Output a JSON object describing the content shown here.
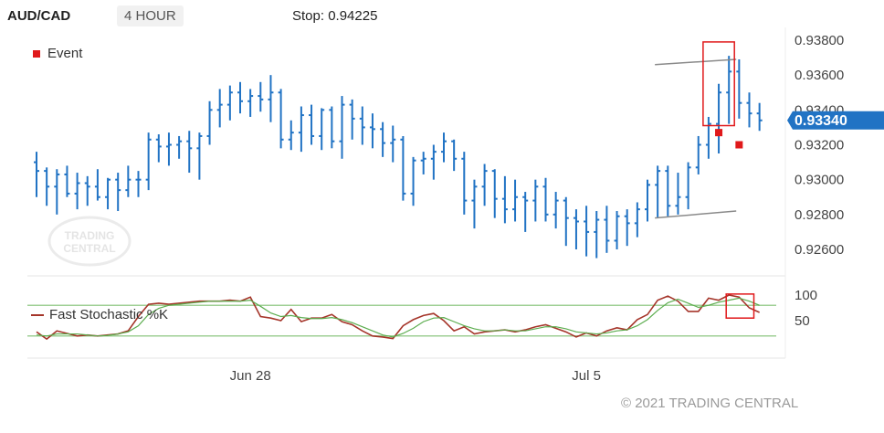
{
  "header": {
    "symbol": "AUD/CAD",
    "timeframe": "4 HOUR",
    "stop": "Stop: 0.94225"
  },
  "legend": {
    "event": "Event",
    "stochastic": "Fast Stochastic %K"
  },
  "watermark": {
    "line1": "TRADING",
    "line2": "CENTRAL"
  },
  "footer": {
    "copyright": "© 2021 TRADING CENTRAL"
  },
  "colors": {
    "bar": "#2173c4",
    "event": "#e0191b",
    "stoch_k": "#a5352a",
    "stoch_d": "#5cad4f",
    "stoch_band": "#9fcf94",
    "price_tag": "#2173c4",
    "trendline": "#8a8a8a",
    "highlight": "#e0191b"
  },
  "chart_data": [
    {
      "type": "ohlc",
      "panel": "price",
      "ylim": [
        0.925,
        0.9392
      ],
      "yticks": [
        "0.92600",
        "0.92800",
        "0.93000",
        "0.93200",
        "0.93400",
        "0.93600",
        "0.93800"
      ],
      "last_price": "0.93340",
      "xticks": [
        {
          "label": "Jun 28",
          "index": 21
        },
        {
          "label": "Jul 5",
          "index": 54
        }
      ],
      "bars": [
        [
          0.931,
          0.9316,
          0.929,
          0.9305
        ],
        [
          0.9305,
          0.9307,
          0.9285,
          0.9296
        ],
        [
          0.9296,
          0.9306,
          0.928,
          0.9303
        ],
        [
          0.9303,
          0.9308,
          0.929,
          0.9292
        ],
        [
          0.9292,
          0.9304,
          0.9283,
          0.9298
        ],
        [
          0.9298,
          0.9302,
          0.9285,
          0.9296
        ],
        [
          0.9296,
          0.9306,
          0.9288,
          0.929
        ],
        [
          0.929,
          0.9301,
          0.9283,
          0.93
        ],
        [
          0.93,
          0.9304,
          0.9282,
          0.9294
        ],
        [
          0.9294,
          0.9308,
          0.929,
          0.93
        ],
        [
          0.93,
          0.9305,
          0.929,
          0.93
        ],
        [
          0.93,
          0.9327,
          0.9294,
          0.9323
        ],
        [
          0.9323,
          0.9326,
          0.931,
          0.9319
        ],
        [
          0.9319,
          0.9327,
          0.9308,
          0.932
        ],
        [
          0.932,
          0.9325,
          0.9312,
          0.9322
        ],
        [
          0.9322,
          0.9328,
          0.9304,
          0.9318
        ],
        [
          0.9318,
          0.9327,
          0.93,
          0.9325
        ],
        [
          0.9325,
          0.9345,
          0.932,
          0.934
        ],
        [
          0.934,
          0.9352,
          0.933,
          0.9343
        ],
        [
          0.9343,
          0.9354,
          0.9334,
          0.935
        ],
        [
          0.935,
          0.9356,
          0.9338,
          0.9345
        ],
        [
          0.9345,
          0.9352,
          0.9336,
          0.9348
        ],
        [
          0.9348,
          0.9356,
          0.9339,
          0.9346
        ],
        [
          0.9346,
          0.936,
          0.9333,
          0.935
        ],
        [
          0.935,
          0.9352,
          0.9318,
          0.9323
        ],
        [
          0.9323,
          0.9334,
          0.9317,
          0.9327
        ],
        [
          0.9327,
          0.9342,
          0.9316,
          0.9337
        ],
        [
          0.9337,
          0.9343,
          0.932,
          0.9325
        ],
        [
          0.9325,
          0.9341,
          0.9317,
          0.934
        ],
        [
          0.934,
          0.9342,
          0.9318,
          0.9322
        ],
        [
          0.9322,
          0.9348,
          0.9312,
          0.9343
        ],
        [
          0.9343,
          0.9346,
          0.9323,
          0.9335
        ],
        [
          0.9335,
          0.9342,
          0.932,
          0.933
        ],
        [
          0.933,
          0.9338,
          0.9318,
          0.9329
        ],
        [
          0.9329,
          0.9333,
          0.9313,
          0.9321
        ],
        [
          0.9321,
          0.9331,
          0.931,
          0.9323
        ],
        [
          0.9323,
          0.9325,
          0.9288,
          0.9292
        ],
        [
          0.9292,
          0.9313,
          0.9285,
          0.9311
        ],
        [
          0.9311,
          0.9316,
          0.9303,
          0.9312
        ],
        [
          0.9312,
          0.932,
          0.93,
          0.9316
        ],
        [
          0.9316,
          0.9327,
          0.931,
          0.9322
        ],
        [
          0.9322,
          0.9323,
          0.9305,
          0.9312
        ],
        [
          0.9312,
          0.9316,
          0.928,
          0.9288
        ],
        [
          0.9288,
          0.93,
          0.9272,
          0.9296
        ],
        [
          0.9296,
          0.9309,
          0.9285,
          0.9305
        ],
        [
          0.9305,
          0.9306,
          0.9278,
          0.9289
        ],
        [
          0.9289,
          0.9302,
          0.9275,
          0.9283
        ],
        [
          0.9283,
          0.93,
          0.9276,
          0.929
        ],
        [
          0.929,
          0.9293,
          0.927,
          0.9288
        ],
        [
          0.9288,
          0.93,
          0.9276,
          0.9296
        ],
        [
          0.9296,
          0.9301,
          0.9276,
          0.928
        ],
        [
          0.928,
          0.9293,
          0.9272,
          0.9288
        ],
        [
          0.9288,
          0.929,
          0.9262,
          0.9278
        ],
        [
          0.9278,
          0.9283,
          0.926,
          0.9276
        ],
        [
          0.9276,
          0.9285,
          0.9256,
          0.927
        ],
        [
          0.927,
          0.9282,
          0.9255,
          0.9277
        ],
        [
          0.9277,
          0.9285,
          0.9258,
          0.9265
        ],
        [
          0.9265,
          0.9282,
          0.926,
          0.9279
        ],
        [
          0.9279,
          0.9283,
          0.9262,
          0.9275
        ],
        [
          0.9275,
          0.9287,
          0.9267,
          0.9283
        ],
        [
          0.9283,
          0.93,
          0.9276,
          0.9297
        ],
        [
          0.9297,
          0.9308,
          0.9278,
          0.9305
        ],
        [
          0.9305,
          0.9308,
          0.9279,
          0.9285
        ],
        [
          0.9285,
          0.9304,
          0.928,
          0.929
        ],
        [
          0.929,
          0.931,
          0.9283,
          0.9307
        ],
        [
          0.9307,
          0.9325,
          0.9303,
          0.932
        ],
        [
          0.932,
          0.9336,
          0.9312,
          0.9332
        ],
        [
          0.9332,
          0.9355,
          0.9315,
          0.935
        ],
        [
          0.935,
          0.9371,
          0.9332,
          0.9362
        ],
        [
          0.9362,
          0.9369,
          0.9335,
          0.9344
        ],
        [
          0.9344,
          0.935,
          0.933,
          0.9338
        ],
        [
          0.9338,
          0.9344,
          0.9328,
          0.9334
        ]
      ],
      "events": [
        {
          "index": 67,
          "price": 0.9327
        },
        {
          "index": 69,
          "price": 0.932
        }
      ],
      "trendlines": [
        {
          "from": [
            61,
            0.9366
          ],
          "to": [
            68,
            0.9369
          ]
        },
        {
          "from": [
            61,
            0.9278
          ],
          "to": [
            68,
            0.9282
          ]
        }
      ],
      "highlight": {
        "from_index": 66,
        "to_index": 68,
        "low": 0.9331,
        "high": 0.9379
      }
    },
    {
      "type": "line",
      "panel": "oscillator",
      "ylim": [
        0,
        130
      ],
      "yticks": [
        "50",
        "100"
      ],
      "bands": [
        20,
        80
      ],
      "series": [
        {
          "name": "Fast Stochastic %K",
          "values": [
            28,
            14,
            30,
            25,
            20,
            22,
            20,
            22,
            24,
            30,
            58,
            82,
            84,
            82,
            84,
            86,
            88,
            88,
            88,
            90,
            88,
            96,
            58,
            55,
            50,
            72,
            48,
            55,
            55,
            62,
            48,
            42,
            30,
            20,
            18,
            15,
            40,
            52,
            60,
            64,
            50,
            30,
            38,
            24,
            28,
            30,
            32,
            28,
            32,
            38,
            42,
            35,
            28,
            18,
            26,
            20,
            30,
            36,
            32,
            52,
            62,
            90,
            98,
            88,
            68,
            68,
            94,
            90,
            100,
            96,
            75,
            66
          ]
        },
        {
          "values": [
            22,
            20,
            24,
            24,
            24,
            22,
            20,
            21,
            24,
            28,
            40,
            62,
            74,
            80,
            82,
            84,
            86,
            88,
            88,
            88,
            88,
            90,
            78,
            65,
            58,
            60,
            56,
            54,
            54,
            56,
            52,
            46,
            38,
            30,
            22,
            18,
            25,
            35,
            48,
            55,
            56,
            48,
            40,
            34,
            30,
            30,
            32,
            30,
            30,
            34,
            38,
            38,
            34,
            28,
            26,
            24,
            26,
            30,
            32,
            40,
            52,
            70,
            85,
            92,
            84,
            76,
            80,
            86,
            90,
            94,
            88,
            80
          ]
        }
      ],
      "highlight": {
        "from_index": 68,
        "to_index": 70,
        "low": 55,
        "high": 102
      }
    }
  ]
}
